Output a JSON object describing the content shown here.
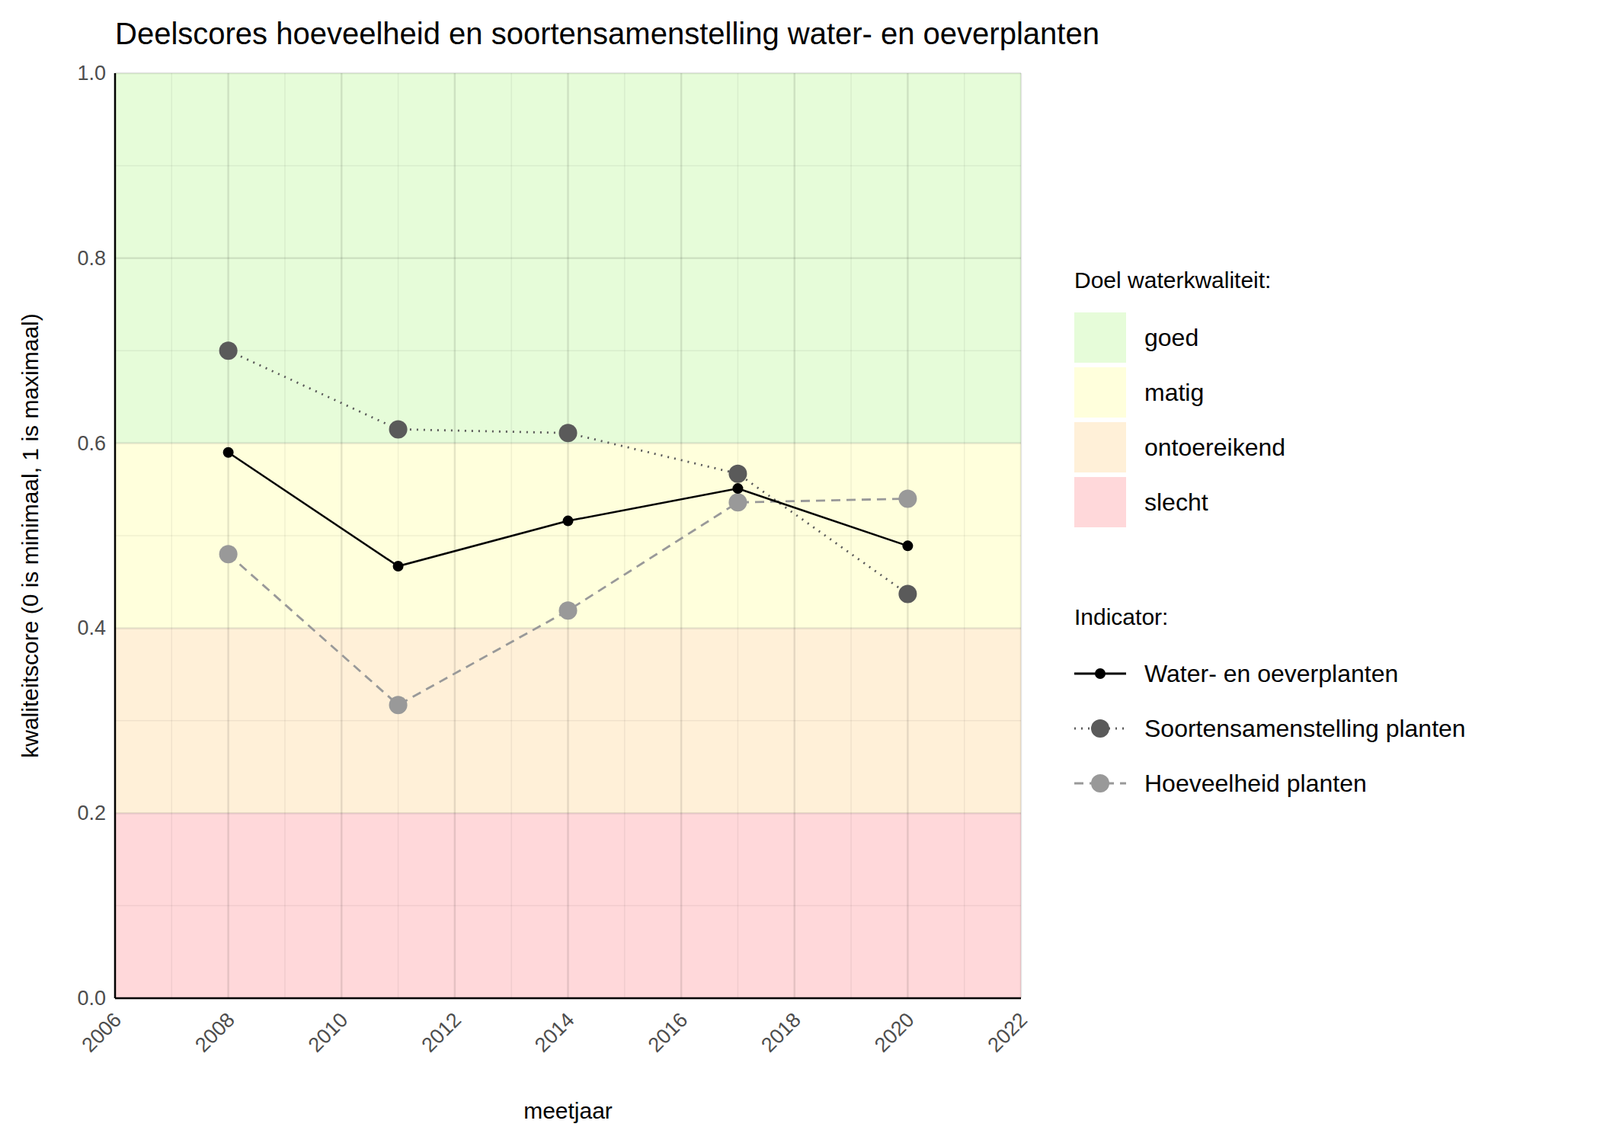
{
  "chart_data": {
    "type": "line",
    "title": "Deelscores hoeveelheid en soortensamenstelling water- en oeverplanten",
    "x_label": "meetjaar",
    "y_label": "kwaliteitscore (0 is minimaal, 1 is maximaal)",
    "x": [
      2008,
      2011,
      2014,
      2017,
      2020
    ],
    "series": [
      {
        "name": "Water- en oeverplanten",
        "color": "#000000",
        "marker": "circle",
        "line_style": "solid",
        "values": [
          0.59,
          0.467,
          0.516,
          0.551,
          0.489
        ]
      },
      {
        "name": "Soortensamenstelling planten",
        "color": "#5a5a5a",
        "marker": "circle",
        "line_style": "dotted",
        "values": [
          0.7,
          0.615,
          0.611,
          0.567,
          0.437
        ]
      },
      {
        "name": "Hoeveelheid planten",
        "color": "#999999",
        "marker": "circle",
        "line_style": "dashed",
        "values": [
          0.48,
          0.317,
          0.419,
          0.536,
          0.54
        ]
      }
    ],
    "legend_titles": {
      "bands": "Doel waterkwaliteit:",
      "series": "Indicator:"
    },
    "bands": [
      {
        "name": "goed",
        "from": 0.6,
        "to": 1.0,
        "color": "#e6fcd9"
      },
      {
        "name": "matig",
        "from": 0.4,
        "to": 0.6,
        "color": "#ffffdc"
      },
      {
        "name": "ontoereikend",
        "from": 0.2,
        "to": 0.4,
        "color": "#fff0d8"
      },
      {
        "name": "slecht",
        "from": 0.0,
        "to": 0.2,
        "color": "#ffd8da"
      }
    ],
    "xlim": [
      2006,
      2022
    ],
    "xticks": [
      2006,
      2008,
      2010,
      2012,
      2014,
      2016,
      2018,
      2020,
      2022
    ],
    "ylim": [
      0,
      1
    ],
    "yticks": [
      {
        "value": 0,
        "label": "0.0"
      },
      0.2,
      0.4,
      0.6,
      0.8,
      {
        "value": 1,
        "label": "1.0"
      }
    ],
    "grid": true,
    "legend": "right"
  }
}
